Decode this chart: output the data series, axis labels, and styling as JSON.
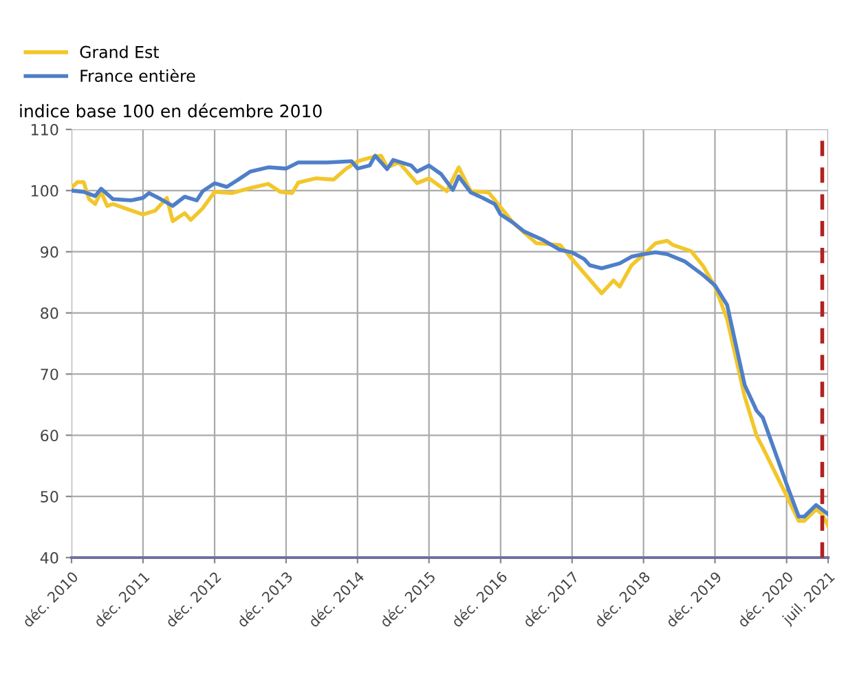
{
  "chart_data": {
    "type": "line",
    "ylabel": "indice base 100 en décembre 2010",
    "series": [
      {
        "name": "Grand Est",
        "color": "#f2c72c",
        "x": [
          "2010-12",
          "2011-01",
          "2011-02",
          "2011-03",
          "2011-04",
          "2011-05",
          "2011-06",
          "2011-07",
          "2011-09",
          "2011-12",
          "2012-02",
          "2012-04",
          "2012-05",
          "2012-07",
          "2012-08",
          "2012-10",
          "2012-12",
          "2013-03",
          "2013-06",
          "2013-09",
          "2013-11",
          "2014-01",
          "2014-02",
          "2014-05",
          "2014-08",
          "2014-10",
          "2014-12",
          "2015-03",
          "2015-04",
          "2015-05",
          "2015-07",
          "2015-10",
          "2015-12",
          "2016-03",
          "2016-05",
          "2016-07",
          "2016-10",
          "2017-02",
          "2017-06",
          "2017-10",
          "2017-12",
          "2018-05",
          "2018-07",
          "2018-08",
          "2018-10",
          "2018-12",
          "2019-02",
          "2019-04",
          "2019-05",
          "2019-08",
          "2019-10",
          "2019-12",
          "2020-02",
          "2020-05",
          "2020-07",
          "2020-08",
          "2020-12",
          "2021-02",
          "2021-03",
          "2021-05",
          "2021-06",
          "2021-07"
        ],
        "values": [
          100.5,
          101.4,
          101.4,
          98.6,
          97.8,
          99.8,
          97.5,
          97.8,
          97.1,
          96.1,
          96.7,
          98.8,
          95.0,
          96.3,
          95.2,
          97.1,
          99.8,
          99.6,
          100.4,
          101.1,
          99.8,
          99.6,
          101.3,
          102.0,
          101.8,
          103.5,
          104.8,
          105.6,
          105.7,
          103.8,
          104.6,
          101.2,
          102.0,
          99.9,
          103.8,
          99.9,
          99.7,
          94.8,
          91.4,
          91.1,
          88.8,
          83.2,
          85.3,
          84.3,
          87.8,
          89.5,
          91.4,
          91.8,
          91.1,
          90.1,
          87.7,
          84.3,
          79.0,
          66.3,
          59.9,
          58.0,
          50.1,
          46.0,
          46.0,
          47.9,
          47.1,
          45.2
        ]
      },
      {
        "name": "France entière",
        "color": "#4f7fc8",
        "x": [
          "2010-12",
          "2011-02",
          "2011-04",
          "2011-05",
          "2011-07",
          "2011-10",
          "2011-12",
          "2012-01",
          "2012-03",
          "2012-05",
          "2012-07",
          "2012-09",
          "2012-10",
          "2012-12",
          "2013-02",
          "2013-04",
          "2013-06",
          "2013-09",
          "2013-12",
          "2014-02",
          "2014-07",
          "2014-11",
          "2014-12",
          "2015-02",
          "2015-03",
          "2015-05",
          "2015-06",
          "2015-09",
          "2015-10",
          "2015-12",
          "2016-02",
          "2016-04",
          "2016-05",
          "2016-07",
          "2016-09",
          "2016-11",
          "2016-12",
          "2017-02",
          "2017-04",
          "2017-07",
          "2017-10",
          "2017-12",
          "2018-02",
          "2018-03",
          "2018-05",
          "2018-08",
          "2018-10",
          "2018-12",
          "2019-02",
          "2019-04",
          "2019-07",
          "2019-10",
          "2019-12",
          "2020-02",
          "2020-05",
          "2020-07",
          "2020-08",
          "2020-12",
          "2021-02",
          "2021-03",
          "2021-05",
          "2021-07"
        ],
        "values": [
          100.0,
          99.8,
          99.1,
          100.3,
          98.6,
          98.4,
          98.8,
          99.6,
          98.6,
          97.5,
          99.0,
          98.4,
          99.9,
          101.2,
          100.6,
          101.8,
          103.1,
          103.8,
          103.6,
          104.6,
          104.6,
          104.8,
          103.6,
          104.1,
          105.7,
          103.5,
          105.0,
          104.1,
          103.1,
          104.1,
          102.7,
          100.1,
          102.3,
          99.7,
          98.8,
          97.8,
          96.1,
          94.8,
          93.3,
          92.0,
          90.3,
          89.9,
          88.8,
          87.8,
          87.3,
          88.1,
          89.2,
          89.6,
          89.9,
          89.6,
          88.4,
          86.2,
          84.5,
          81.3,
          68.2,
          64.0,
          62.9,
          52.0,
          46.7,
          46.7,
          48.6,
          47.1
        ]
      }
    ],
    "xlim": [
      "2010-12",
      "2021-07"
    ],
    "xticks": [
      {
        "value": "2010-12",
        "label": "déc. 2010"
      },
      {
        "value": "2011-12",
        "label": "déc. 2011"
      },
      {
        "value": "2012-12",
        "label": "déc. 2012"
      },
      {
        "value": "2013-12",
        "label": "déc. 2013"
      },
      {
        "value": "2014-12",
        "label": "déc. 2014"
      },
      {
        "value": "2015-12",
        "label": "déc. 2015"
      },
      {
        "value": "2016-12",
        "label": "déc. 2016"
      },
      {
        "value": "2017-12",
        "label": "déc. 2017"
      },
      {
        "value": "2018-12",
        "label": "déc. 2018"
      },
      {
        "value": "2019-12",
        "label": "déc. 2019"
      },
      {
        "value": "2020-12",
        "label": "déc. 2020"
      },
      {
        "value": "2021-07",
        "label": "juil. 2021"
      }
    ],
    "ylim": [
      40,
      110
    ],
    "yticks": [
      40,
      50,
      60,
      70,
      80,
      90,
      100,
      110
    ],
    "ref_lines": [
      {
        "axis": "x",
        "value": "2021-06",
        "color": "#b22222",
        "line_style": "dashed"
      }
    ],
    "grid": true,
    "legend": "top left",
    "marker": "none",
    "line_style": "solid"
  }
}
